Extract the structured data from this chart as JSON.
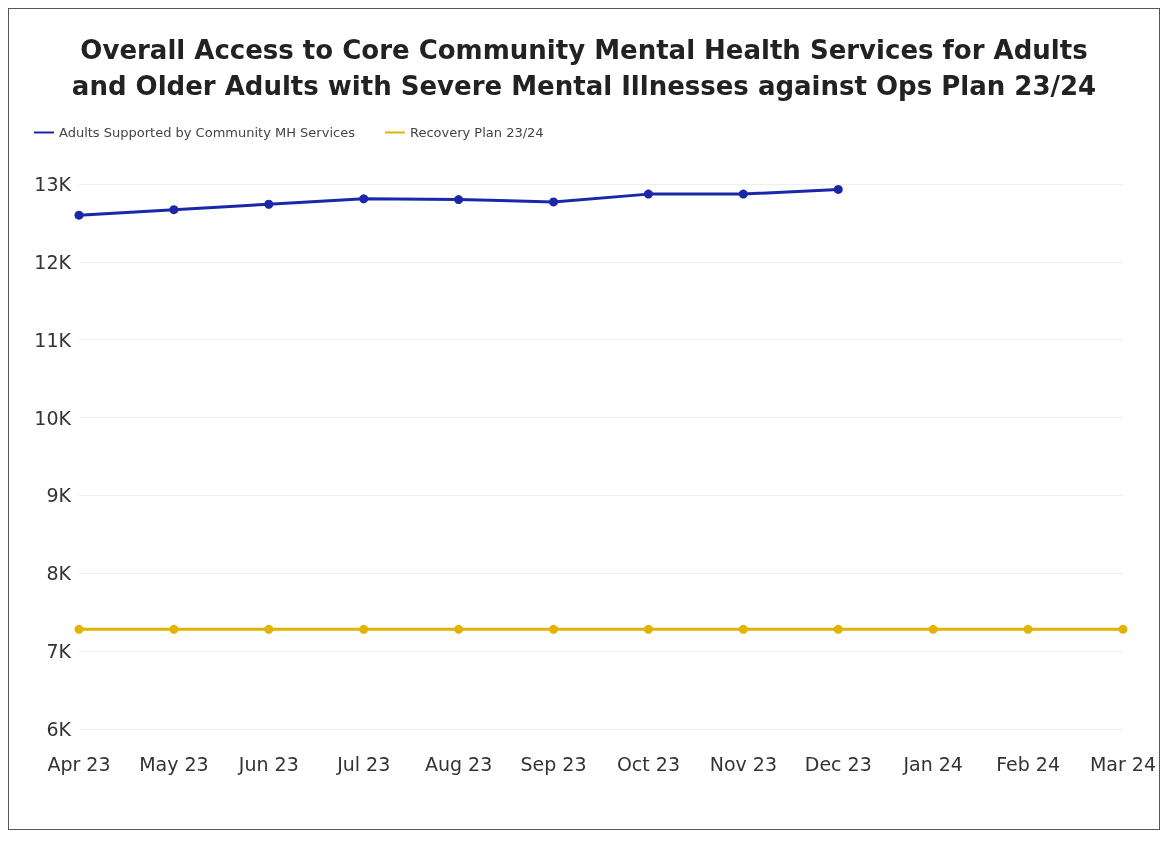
{
  "chart_data": {
    "type": "line",
    "title": "Overall Access to Core Community Mental Health Services for Adults\nand Older Adults with Severe Mental Illnesses against Ops Plan 23/24",
    "categories": [
      "Apr 23",
      "May 23",
      "Jun 23",
      "Jul 23",
      "Aug 23",
      "Sep 23",
      "Oct 23",
      "Nov 23",
      "Dec 23",
      "Jan 24",
      "Feb 24",
      "Mar 24"
    ],
    "series": [
      {
        "name": "Adults Supported by Community MH Services",
        "color": "#1a28a8",
        "values": [
          12600,
          12670,
          12740,
          12810,
          12800,
          12770,
          12870,
          12870,
          12930,
          null,
          null,
          null
        ]
      },
      {
        "name": "Recovery Plan 23/24",
        "color": "#e0b400",
        "values": [
          7280,
          7280,
          7280,
          7280,
          7280,
          7280,
          7280,
          7280,
          7280,
          7280,
          7280,
          7280
        ]
      }
    ],
    "ylim": [
      6000,
      13000
    ],
    "yticks": [
      {
        "value": 6000,
        "label": "6K"
      },
      {
        "value": 7000,
        "label": "7K"
      },
      {
        "value": 8000,
        "label": "8K"
      },
      {
        "value": 9000,
        "label": "9K"
      },
      {
        "value": 10000,
        "label": "10K"
      },
      {
        "value": 11000,
        "label": "11K"
      },
      {
        "value": 12000,
        "label": "12K"
      },
      {
        "value": 13000,
        "label": "13K"
      }
    ],
    "grid": "y",
    "legend": "top left",
    "marker": "circle",
    "line_style": "solid"
  }
}
